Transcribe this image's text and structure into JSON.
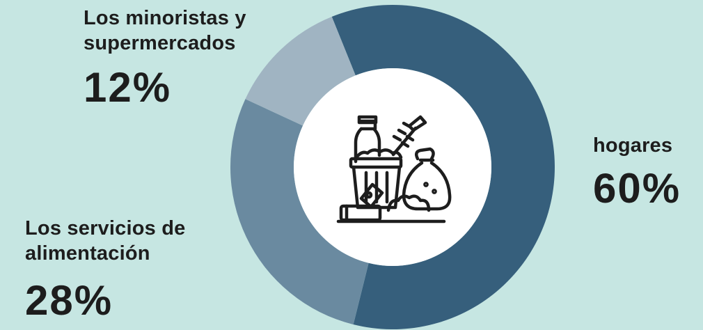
{
  "chart_data": {
    "type": "pie",
    "style": "donut",
    "categories": [
      "hogares",
      "Los servicios de alimentación",
      "Los minoristas y supermercados"
    ],
    "values": [
      60,
      28,
      12
    ],
    "value_labels": [
      "60%",
      "28%",
      "12%"
    ],
    "colors": [
      "#365f7c",
      "#6a8aa0",
      "#a0b4c2"
    ],
    "center_icon": "food-waste-trash-bin-icon"
  },
  "labels": {
    "retail": {
      "name": "Los minoristas y\nsupermercados",
      "value": "12%"
    },
    "food_service": {
      "name": "Los servicios de\nalimentación",
      "value": "28%"
    },
    "households": {
      "name": "hogares",
      "value": "60%"
    }
  },
  "colors": {
    "background": "#c6e6e2",
    "text": "#1d1d1d",
    "center": "#ffffff"
  }
}
